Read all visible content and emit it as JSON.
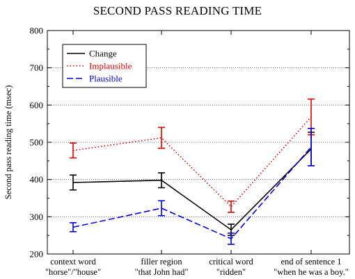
{
  "chart_data": {
    "type": "line",
    "title": "SECOND PASS READING TIME",
    "ylabel": "Second pass reading time (msec)",
    "xlabel": "",
    "ylim": [
      200,
      800
    ],
    "yticks": [
      200,
      300,
      400,
      500,
      600,
      700,
      800
    ],
    "grid": "horizontal dotted",
    "legend_position": "top-left",
    "categories": [
      [
        "context word",
        "\"horse\"/\"house\""
      ],
      [
        "filler region",
        "\"that John had\""
      ],
      [
        "critical word",
        "\"ridden\""
      ],
      [
        "end of sentence 1",
        "\"when he was a boy.\""
      ]
    ],
    "series": [
      {
        "name": "Change",
        "color": "#000000",
        "dash": "solid",
        "values": [
          392,
          398,
          265,
          482
        ],
        "errors": [
          20,
          20,
          15,
          45
        ]
      },
      {
        "name": "Implausible",
        "color": "#e00000",
        "dash": "dotted",
        "values": [
          478,
          512,
          327,
          568
        ],
        "errors": [
          20,
          28,
          15,
          48
        ]
      },
      {
        "name": "Plausible",
        "color": "#0000dd",
        "dash": "dashed",
        "values": [
          272,
          323,
          241,
          487
        ],
        "errors": [
          12,
          20,
          15,
          50
        ]
      }
    ]
  }
}
